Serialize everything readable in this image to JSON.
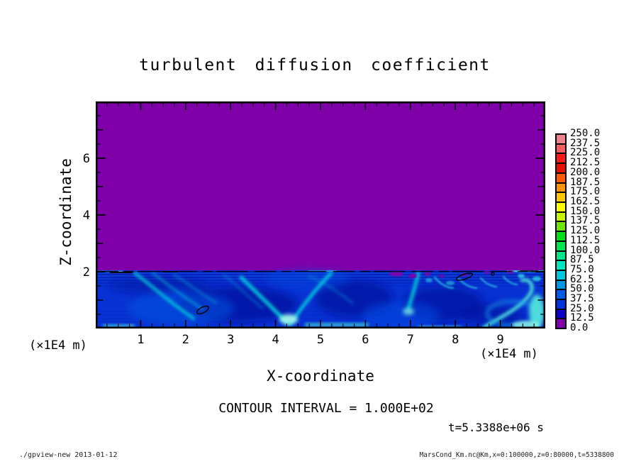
{
  "header": {
    "title": "turbulent diffusion coefficient"
  },
  "chart_data": {
    "type": "heatmap",
    "title": "turbulent diffusion coefficient",
    "xlabel": "X-coordinate",
    "ylabel": "Z-coordinate",
    "x_unit": "(×1E4 m)",
    "y_unit": "(×1E4 m)",
    "xlim": [
      0,
      10
    ],
    "ylim": [
      0,
      8
    ],
    "x_ticks": [
      "1",
      "2",
      "3",
      "4",
      "5",
      "6",
      "7",
      "8",
      "9"
    ],
    "y_ticks": [
      "2",
      "4",
      "6"
    ],
    "x_minor_step": 0.25,
    "y_minor_step": 0.5,
    "contour_interval_label": "CONTOUR INTERVAL = 1.000E+02",
    "time_label": "t=5.3388e+06 s",
    "field_description": "uniform low values 0.0–12.5 (purple) above z≈2×1E4 m; turbulent mixing layer with values ~12.5–100 (blues/cyans) below z≈2×1E4 m",
    "colorbar": {
      "min": 0.0,
      "max": 250.0,
      "step": 12.5,
      "levels_top_to_bottom": [
        "250.0",
        "237.5",
        "225.0",
        "212.5",
        "200.0",
        "187.5",
        "175.0",
        "162.5",
        "150.0",
        "137.5",
        "125.0",
        "112.5",
        "100.0",
        "87.5",
        "75.0",
        "62.5",
        "50.0",
        "37.5",
        "25.0",
        "12.5",
        "0.0"
      ],
      "colors_top_to_bottom": [
        "#F0828C",
        "#F55F5F",
        "#FF1919",
        "#E60F00",
        "#FF5A00",
        "#FF9600",
        "#FFC800",
        "#FFFF00",
        "#C8F500",
        "#6EE600",
        "#00E114",
        "#00E650",
        "#00E68C",
        "#00E6BE",
        "#00C8E1",
        "#0096E6",
        "#005AE6",
        "#0032DC",
        "#0A00C8",
        "#8200A8"
      ]
    },
    "field_colors": {
      "background_purple": "#7F00A8",
      "layer_blue": "#0731D2",
      "cyan_streak": "#00D2DC"
    }
  },
  "footer": {
    "left": "./gpview-new  2013-01-12",
    "right": "MarsCond_Km.nc@Km,x=0:100000,z=0:80000,t=5338800"
  }
}
